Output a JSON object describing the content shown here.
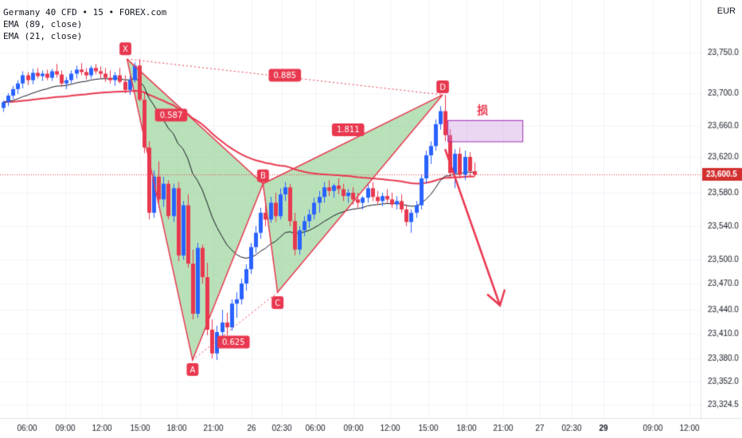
{
  "header": {
    "symbol_line": "Germany 40 CFD • 15 • FOREX.com",
    "ema1": "EMA (89, close)",
    "ema2": "EMA (21, close)",
    "currency": "EUR"
  },
  "price_axis": {
    "ticks": [
      "23,750.0",
      "23,700.0",
      "23,660.0",
      "23,620.0",
      "23,580.0",
      "23,540.0",
      "23,500.0",
      "23,470.0",
      "23,440.0",
      "23,410.0",
      "23,380.0",
      "23,352.0",
      "23,324.5"
    ],
    "last_price": "23,600.5",
    "last_price_color": "#d32f2f"
  },
  "time_axis": {
    "ticks": [
      "06:00",
      "09:00",
      "12:00",
      "15:00",
      "18:00",
      "21:00",
      "26",
      "02:30",
      "06:00",
      "09:00",
      "12:00",
      "15:00",
      "18:00",
      "21:00",
      "27",
      "02:30",
      "29",
      "09:00",
      "12:00"
    ],
    "bold_ticks": [
      "29"
    ]
  },
  "pattern": {
    "points": [
      {
        "label": "X",
        "price": 23742
      },
      {
        "label": "A",
        "price": 23378
      },
      {
        "label": "B",
        "price": 23590
      },
      {
        "label": "C",
        "price": 23460
      },
      {
        "label": "D",
        "price": 23698
      }
    ],
    "ratios": [
      "0.885",
      "0.587",
      "1.811",
      "0.625"
    ],
    "fill_color": "#7fc97f",
    "line_color": "#e8384f"
  },
  "annotation": {
    "stop_label": "损",
    "stop_zone_top": 23667,
    "stop_zone_bottom": 23640,
    "arrow_target_price": 23445
  },
  "chart_data": {
    "type": "candlestick",
    "title": "Germany 40 CFD • 15 • FOREX.com",
    "series": [
      {
        "name": "EMA (89, close)",
        "color": "#e8384f"
      },
      {
        "name": "EMA (21, close)",
        "color": "#131722"
      }
    ],
    "up_color": "#2962ff",
    "down_color": "#e8384f",
    "ylim": [
      23310,
      23785
    ],
    "last_price": 23600.5,
    "ohlc": [
      [
        23682,
        23691,
        23677,
        23689
      ],
      [
        23689,
        23700,
        23684,
        23697
      ],
      [
        23697,
        23709,
        23693,
        23705
      ],
      [
        23705,
        23716,
        23699,
        23712
      ],
      [
        23712,
        23727,
        23706,
        23722
      ],
      [
        23722,
        23726,
        23710,
        23716
      ],
      [
        23716,
        23730,
        23711,
        23725
      ],
      [
        23725,
        23731,
        23718,
        23721
      ],
      [
        23721,
        23728,
        23715,
        23724
      ],
      [
        23724,
        23729,
        23716,
        23719
      ],
      [
        23719,
        23730,
        23715,
        23727
      ],
      [
        23727,
        23736,
        23719,
        23723
      ],
      [
        23723,
        23728,
        23708,
        23712
      ],
      [
        23712,
        23720,
        23705,
        23716
      ],
      [
        23716,
        23728,
        23712,
        23724
      ],
      [
        23724,
        23734,
        23718,
        23729
      ],
      [
        23729,
        23737,
        23722,
        23726
      ],
      [
        23726,
        23731,
        23717,
        23722
      ],
      [
        23722,
        23734,
        23718,
        23731
      ],
      [
        23731,
        23736,
        23723,
        23727
      ],
      [
        23727,
        23733,
        23718,
        23724
      ],
      [
        23724,
        23731,
        23714,
        23719
      ],
      [
        23719,
        23728,
        23712,
        23716
      ],
      [
        23716,
        23726,
        23709,
        23722
      ],
      [
        23722,
        23731,
        23712,
        23714
      ],
      [
        23714,
        23722,
        23700,
        23704
      ],
      [
        23704,
        23721,
        23698,
        23716
      ],
      [
        23716,
        23738,
        23713,
        23734
      ],
      [
        23734,
        23742,
        23690,
        23692
      ],
      [
        23692,
        23700,
        23625,
        23632
      ],
      [
        23632,
        23640,
        23548,
        23556
      ],
      [
        23556,
        23605,
        23550,
        23598
      ],
      [
        23598,
        23615,
        23565,
        23572
      ],
      [
        23572,
        23598,
        23563,
        23590
      ],
      [
        23590,
        23594,
        23548,
        23552
      ],
      [
        23552,
        23590,
        23545,
        23585
      ],
      [
        23585,
        23592,
        23498,
        23505
      ],
      [
        23505,
        23570,
        23500,
        23565
      ],
      [
        23565,
        23578,
        23490,
        23495
      ],
      [
        23495,
        23512,
        23428,
        23435
      ],
      [
        23435,
        23520,
        23430,
        23514
      ],
      [
        23514,
        23518,
        23470,
        23478
      ],
      [
        23478,
        23496,
        23408,
        23415
      ],
      [
        23415,
        23428,
        23380,
        23386
      ],
      [
        23386,
        23420,
        23378,
        23412
      ],
      [
        23412,
        23440,
        23400,
        23424
      ],
      [
        23424,
        23436,
        23408,
        23418
      ],
      [
        23418,
        23452,
        23414,
        23447
      ],
      [
        23447,
        23460,
        23430,
        23452
      ],
      [
        23452,
        23476,
        23446,
        23470
      ],
      [
        23470,
        23494,
        23462,
        23488
      ],
      [
        23488,
        23520,
        23482,
        23515
      ],
      [
        23515,
        23540,
        23508,
        23532
      ],
      [
        23532,
        23562,
        23525,
        23556
      ],
      [
        23556,
        23572,
        23540,
        23548
      ],
      [
        23548,
        23575,
        23544,
        23568
      ],
      [
        23568,
        23580,
        23545,
        23552
      ],
      [
        23552,
        23585,
        23548,
        23578
      ],
      [
        23578,
        23592,
        23570,
        23586
      ],
      [
        23586,
        23590,
        23540,
        23546
      ],
      [
        23546,
        23556,
        23505,
        23512
      ],
      [
        23512,
        23540,
        23506,
        23535
      ],
      [
        23535,
        23552,
        23528,
        23546
      ],
      [
        23546,
        23560,
        23538,
        23554
      ],
      [
        23554,
        23574,
        23548,
        23568
      ],
      [
        23568,
        23582,
        23556,
        23575
      ],
      [
        23575,
        23592,
        23568,
        23586
      ],
      [
        23586,
        23594,
        23576,
        23582
      ],
      [
        23582,
        23590,
        23574,
        23588
      ],
      [
        23588,
        23596,
        23578,
        23584
      ],
      [
        23584,
        23590,
        23570,
        23576
      ],
      [
        23576,
        23584,
        23568,
        23580
      ],
      [
        23580,
        23586,
        23566,
        23572
      ],
      [
        23572,
        23580,
        23562,
        23568
      ],
      [
        23568,
        23576,
        23560,
        23574
      ],
      [
        23574,
        23590,
        23568,
        23585
      ],
      [
        23585,
        23592,
        23570,
        23575
      ],
      [
        23575,
        23582,
        23566,
        23570
      ],
      [
        23570,
        23580,
        23564,
        23576
      ],
      [
        23576,
        23584,
        23568,
        23572
      ],
      [
        23572,
        23580,
        23562,
        23566
      ],
      [
        23566,
        23576,
        23560,
        23570
      ],
      [
        23570,
        23578,
        23556,
        23560
      ],
      [
        23560,
        23566,
        23540,
        23545
      ],
      [
        23545,
        23560,
        23532,
        23556
      ],
      [
        23556,
        23570,
        23550,
        23565
      ],
      [
        23565,
        23600,
        23560,
        23596
      ],
      [
        23596,
        23628,
        23590,
        23622
      ],
      [
        23622,
        23640,
        23612,
        23634
      ],
      [
        23634,
        23668,
        23628,
        23662
      ],
      [
        23662,
        23684,
        23655,
        23678
      ],
      [
        23678,
        23698,
        23640,
        23648
      ],
      [
        23648,
        23656,
        23596,
        23602
      ],
      [
        23602,
        23630,
        23585,
        23624
      ],
      [
        23624,
        23632,
        23596,
        23600
      ],
      [
        23600,
        23628,
        23594,
        23620
      ],
      [
        23620,
        23626,
        23598,
        23604
      ],
      [
        23604,
        23614,
        23598,
        23600
      ]
    ]
  }
}
